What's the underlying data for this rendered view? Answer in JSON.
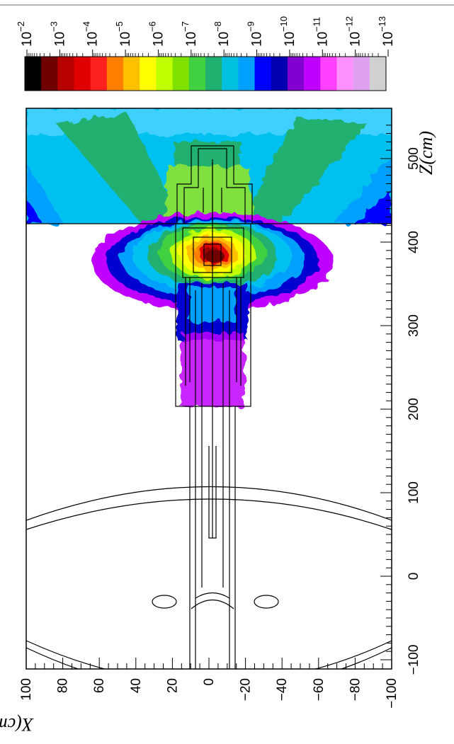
{
  "chart_data": {
    "type": "heatmap",
    "xlabel": "Z(cm)",
    "ylabel": "X(cm)",
    "xlim": [
      -100,
      550
    ],
    "ylim": [
      -100,
      100
    ],
    "x_ticks": [
      "−100",
      "0",
      "100",
      "200",
      "300",
      "400",
      "500"
    ],
    "y_ticks": [
      "100",
      "80",
      "60",
      "40",
      "20",
      "0",
      "−20",
      "−40",
      "−60",
      "−80",
      "−100"
    ],
    "colorscale": {
      "tick_labels": [
        "10",
        "10",
        "10",
        "10",
        "10",
        "10",
        "10",
        "10",
        "10",
        "10",
        "10",
        "10"
      ],
      "exponents": [
        "−2",
        "−3",
        "−4",
        "−5",
        "−6",
        "−7",
        "−8",
        "−9",
        "−10",
        "−11",
        "−12",
        "−13"
      ],
      "colors": [
        "#000000",
        "#700000",
        "#b80000",
        "#e00000",
        "#ff2020",
        "#ff8000",
        "#ffc000",
        "#ffff00",
        "#c0ff00",
        "#80e000",
        "#40d040",
        "#20b070",
        "#00c0e0",
        "#00a0ff",
        "#0000ff",
        "#0000b0",
        "#8000d0",
        "#c000ff",
        "#ff40ff",
        "#ff90ff",
        "#e0a0f0",
        "#d0d0d0"
      ]
    }
  }
}
